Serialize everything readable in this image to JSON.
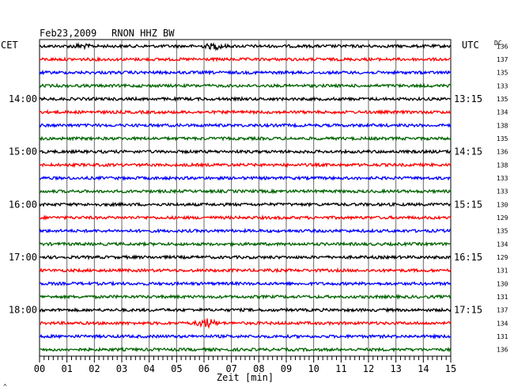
{
  "header": {
    "date": "Feb23,2009",
    "station": "RNON HHZ BW",
    "left_tz": "CET",
    "right_tz": "UTC",
    "dc_label": "DC"
  },
  "x_axis": {
    "label": "Zeit [min]",
    "ticks": [
      "00",
      "01",
      "02",
      "03",
      "04",
      "05",
      "06",
      "07",
      "08",
      "09",
      "10",
      "11",
      "12",
      "13",
      "14",
      "15"
    ]
  },
  "footer_mark": "^",
  "chart_data": {
    "type": "line",
    "title": "Feb23,2009 RNON HHZ BW",
    "xlabel": "Zeit [min]",
    "xlim": [
      0,
      15
    ],
    "trace_count": 24,
    "trace_colors": [
      "#000000",
      "#ff0000",
      "#0000ff",
      "#006400"
    ],
    "left_hour_labels": [
      {
        "trace": 4,
        "label": "14:00"
      },
      {
        "trace": 8,
        "label": "15:00"
      },
      {
        "trace": 12,
        "label": "16:00"
      },
      {
        "trace": 16,
        "label": "17:00"
      },
      {
        "trace": 20,
        "label": "18:00"
      }
    ],
    "right_hour_labels": [
      {
        "trace": 4,
        "label": "13:15"
      },
      {
        "trace": 8,
        "label": "14:15"
      },
      {
        "trace": 12,
        "label": "15:15"
      },
      {
        "trace": 16,
        "label": "16:15"
      },
      {
        "trace": 20,
        "label": "17:15"
      }
    ],
    "dc_values": [
      "136",
      "137",
      "135",
      "133",
      "135",
      "134",
      "138",
      "135",
      "136",
      "138",
      "133",
      "133",
      "130",
      "129",
      "135",
      "134",
      "129",
      "131",
      "130",
      "131",
      "137",
      "134",
      "131",
      "136"
    ],
    "events": [
      {
        "trace": 0,
        "minute": 1.5,
        "amplitude": 2
      },
      {
        "trace": 0,
        "minute": 6.4,
        "amplitude": 3
      },
      {
        "trace": 21,
        "minute": 6.1,
        "amplitude": 5
      }
    ],
    "grid": true
  }
}
